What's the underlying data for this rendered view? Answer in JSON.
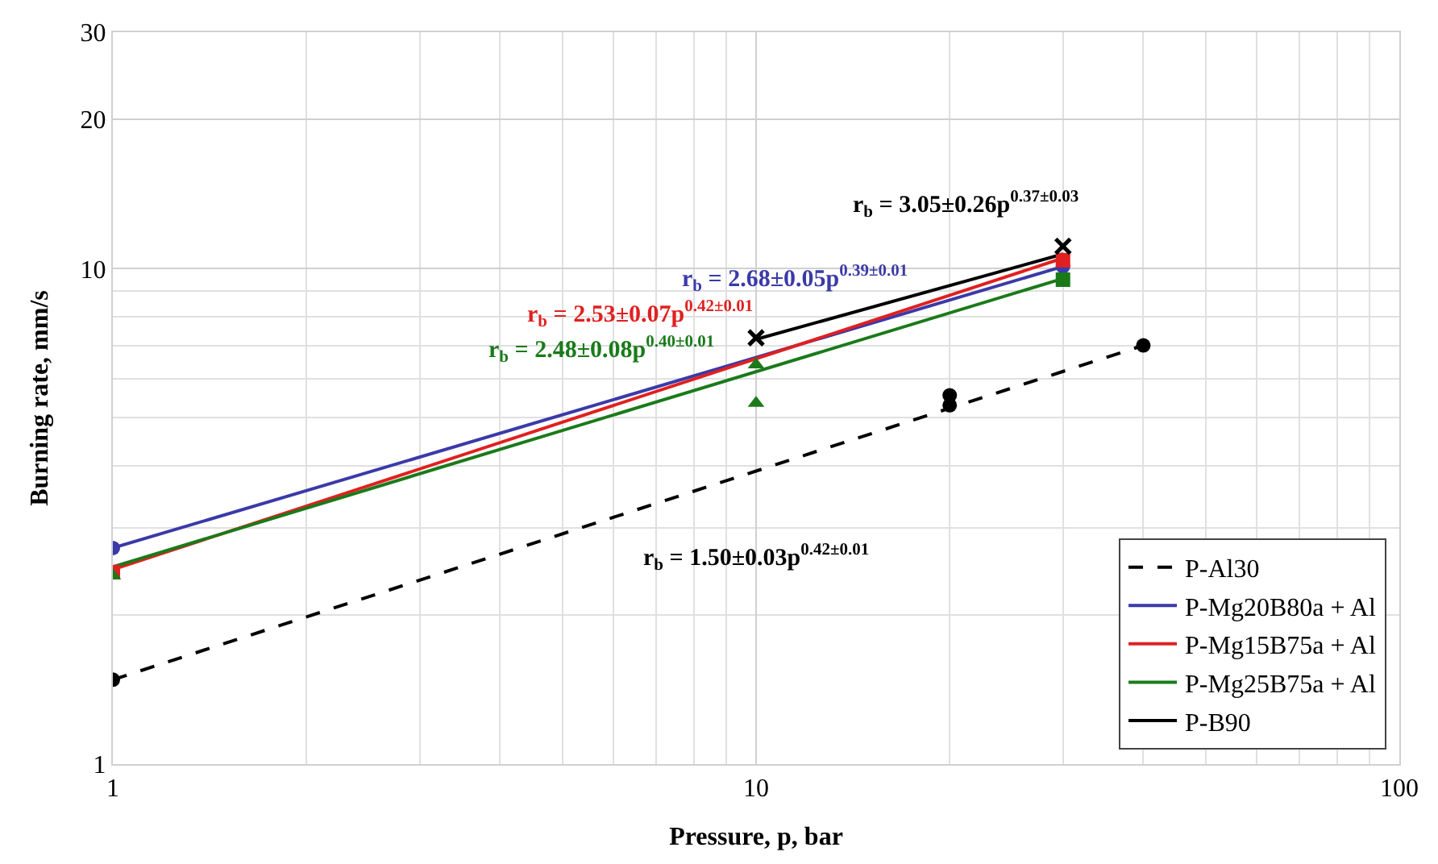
{
  "chart_data": {
    "type": "line",
    "xlabel": "Pressure, p, bar",
    "ylabel": "Burning rate, mm/s",
    "log": "xy",
    "grid": true,
    "legend": "bottom right",
    "xlim": [
      1,
      100
    ],
    "xticks": [
      1,
      10,
      100
    ],
    "ylim": [
      1,
      30
    ],
    "yticks": [
      1,
      10,
      20,
      30
    ],
    "series": [
      {
        "name": "P-Al30",
        "color": "#000000",
        "line_style": "dashed",
        "marker": "none",
        "x": [
          1,
          40
        ],
        "values": [
          1.48,
          7.0
        ]
      },
      {
        "name": "P-Mg20B80a + Al",
        "color": "#3a3aa8",
        "line_style": "solid",
        "marker": "none",
        "x": [
          1,
          30
        ],
        "values": [
          2.73,
          10.1
        ]
      },
      {
        "name": "P-Mg15B75a + Al",
        "color": "#e02020",
        "line_style": "solid",
        "marker": "none",
        "x": [
          1,
          30
        ],
        "values": [
          2.47,
          10.5
        ]
      },
      {
        "name": "P-Mg25B75a + Al",
        "color": "#1a7a1a",
        "line_style": "solid",
        "marker": "none",
        "x": [
          1,
          30
        ],
        "values": [
          2.5,
          9.55
        ]
      },
      {
        "name": "P-B90",
        "color": "#000000",
        "line_style": "solid",
        "marker": "none",
        "x": [
          10,
          30
        ],
        "values": [
          7.2,
          10.7
        ]
      },
      {
        "type": "scatter",
        "color": "#000000",
        "marker": "circle",
        "x": [
          1,
          20,
          20,
          40
        ],
        "values": [
          1.48,
          5.55,
          5.3,
          7.0
        ]
      },
      {
        "type": "scatter",
        "color": "#3a3aa8",
        "marker": "circle",
        "x": [
          1,
          10,
          30
        ],
        "values": [
          2.73,
          null,
          10.1
        ]
      },
      {
        "type": "scatter",
        "color": "#e02020",
        "marker": "square",
        "x": [
          1,
          30
        ],
        "values": [
          2.44,
          10.4
        ]
      },
      {
        "type": "scatter",
        "color": "#1a7a1a",
        "marker": "triangle",
        "x": [
          1,
          10,
          10
        ],
        "values": [
          2.4,
          6.4,
          5.35
        ]
      },
      {
        "type": "scatter",
        "color": "#1a7a1a",
        "marker": "square",
        "x": [
          30
        ],
        "values": [
          9.5
        ]
      },
      {
        "type": "scatter",
        "color": "#000000",
        "marker": "cross",
        "x": [
          10,
          30
        ],
        "values": [
          7.25,
          11.1
        ]
      }
    ],
    "annotations": [
      "r$_{b}$ = 1.50±0.03p$^{0.42±0.01}$",
      "r$_{b}$ = 2.68±0.05p$^{0.39±0.01}$",
      "r$_{b}$ = 2.53±0.07p$^{0.42±0.01}$",
      "r$_{b}$ = 2.48±0.08p$^{0.40±0.01}$",
      "r$_{b}$ = 3.05±0.26p$^{0.37±0.03}$"
    ]
  }
}
